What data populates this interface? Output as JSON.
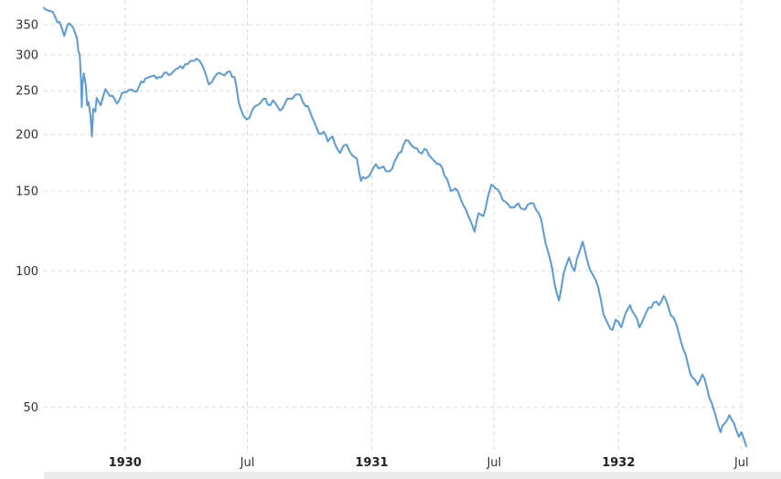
{
  "chart_data": {
    "type": "line",
    "title": "",
    "xlabel": "",
    "ylabel": "",
    "y_scale": "log",
    "ylim": [
      41,
      375
    ],
    "xlim": [
      "1929-09-03",
      "1932-07-08"
    ],
    "grid": true,
    "legend": "none",
    "colors": {
      "line": "#5b9bd5",
      "grid": "#d9d9d9"
    },
    "y_ticks": [
      {
        "value": 50,
        "label": "50"
      },
      {
        "value": 100,
        "label": "100"
      },
      {
        "value": 150,
        "label": "150"
      },
      {
        "value": 200,
        "label": "200"
      },
      {
        "value": 250,
        "label": "250"
      },
      {
        "value": 300,
        "label": "300"
      },
      {
        "value": 350,
        "label": "350"
      }
    ],
    "x_ticks": [
      {
        "date": "1930-01-01",
        "label": "1930",
        "bold": true
      },
      {
        "date": "1930-07-01",
        "label": "Jul",
        "bold": false
      },
      {
        "date": "1931-01-01",
        "label": "1931",
        "bold": true
      },
      {
        "date": "1931-07-01",
        "label": "Jul",
        "bold": false
      },
      {
        "date": "1932-01-01",
        "label": "1932",
        "bold": true
      },
      {
        "date": "1932-07-01",
        "label": "Jul",
        "bold": false
      }
    ],
    "series": [
      {
        "values": [
          [
            "1929-09-03",
            381
          ],
          [
            "1929-09-12",
            375
          ],
          [
            "1929-09-20",
            363
          ],
          [
            "1929-09-26",
            355
          ],
          [
            "1929-10-03",
            330
          ],
          [
            "1929-10-08",
            350
          ],
          [
            "1929-10-11",
            352
          ],
          [
            "1929-10-16",
            345
          ],
          [
            "1929-10-22",
            326
          ],
          [
            "1929-10-24",
            305
          ],
          [
            "1929-10-26",
            300
          ],
          [
            "1929-10-28",
            260
          ],
          [
            "1929-10-29",
            230
          ],
          [
            "1929-10-30",
            258
          ],
          [
            "1929-11-01",
            273
          ],
          [
            "1929-11-04",
            257
          ],
          [
            "1929-11-06",
            232
          ],
          [
            "1929-11-08",
            236
          ],
          [
            "1929-11-11",
            220
          ],
          [
            "1929-11-13",
            198
          ],
          [
            "1929-11-15",
            228
          ],
          [
            "1929-11-18",
            225
          ],
          [
            "1929-11-20",
            241
          ],
          [
            "1929-11-22",
            238
          ],
          [
            "1929-11-26",
            232
          ],
          [
            "1929-12-03",
            252
          ],
          [
            "1929-12-06",
            248
          ],
          [
            "1929-12-10",
            243
          ],
          [
            "1929-12-13",
            244
          ],
          [
            "1929-12-20",
            234
          ],
          [
            "1929-12-24",
            239
          ],
          [
            "1929-12-31",
            248
          ],
          [
            "1930-01-07",
            251
          ],
          [
            "1930-01-15",
            249
          ],
          [
            "1930-01-22",
            256
          ],
          [
            "1930-01-31",
            266
          ],
          [
            "1930-02-10",
            269
          ],
          [
            "1930-02-20",
            268
          ],
          [
            "1930-02-28",
            274
          ],
          [
            "1930-03-10",
            272
          ],
          [
            "1930-03-20",
            280
          ],
          [
            "1930-03-31",
            286
          ],
          [
            "1930-04-08",
            291
          ],
          [
            "1930-04-17",
            294
          ],
          [
            "1930-04-25",
            285
          ],
          [
            "1930-05-01",
            270
          ],
          [
            "1930-05-05",
            258
          ],
          [
            "1930-05-10",
            262
          ],
          [
            "1930-05-20",
            274
          ],
          [
            "1930-05-28",
            270
          ],
          [
            "1930-06-05",
            276
          ],
          [
            "1930-06-12",
            268
          ],
          [
            "1930-06-18",
            236
          ],
          [
            "1930-06-25",
            220
          ],
          [
            "1930-06-30",
            216
          ],
          [
            "1930-07-08",
            226
          ],
          [
            "1930-07-15",
            232
          ],
          [
            "1930-07-25",
            240
          ],
          [
            "1930-07-31",
            233
          ],
          [
            "1930-08-08",
            238
          ],
          [
            "1930-08-18",
            226
          ],
          [
            "1930-08-25",
            233
          ],
          [
            "1930-09-02",
            240
          ],
          [
            "1930-09-10",
            245
          ],
          [
            "1930-09-17",
            245
          ],
          [
            "1930-09-25",
            231
          ],
          [
            "1930-10-01",
            226
          ],
          [
            "1930-10-08",
            213
          ],
          [
            "1930-10-15",
            201
          ],
          [
            "1930-10-22",
            203
          ],
          [
            "1930-10-28",
            193
          ],
          [
            "1930-11-04",
            198
          ],
          [
            "1930-11-10",
            187
          ],
          [
            "1930-11-15",
            182
          ],
          [
            "1930-11-20",
            189
          ],
          [
            "1930-11-25",
            190
          ],
          [
            "1930-12-03",
            180
          ],
          [
            "1930-12-10",
            177
          ],
          [
            "1930-12-16",
            158
          ],
          [
            "1930-12-22",
            160
          ],
          [
            "1930-12-31",
            165
          ],
          [
            "1931-01-07",
            172
          ],
          [
            "1931-01-15",
            169
          ],
          [
            "1931-01-22",
            166
          ],
          [
            "1931-01-31",
            168
          ],
          [
            "1931-02-10",
            182
          ],
          [
            "1931-02-17",
            190
          ],
          [
            "1931-02-24",
            194
          ],
          [
            "1931-03-05",
            187
          ],
          [
            "1931-03-12",
            183
          ],
          [
            "1931-03-20",
            186
          ],
          [
            "1931-03-30",
            178
          ],
          [
            "1931-04-08",
            172
          ],
          [
            "1931-04-15",
            169
          ],
          [
            "1931-04-22",
            160
          ],
          [
            "1931-04-28",
            150
          ],
          [
            "1931-05-05",
            152
          ],
          [
            "1931-05-12",
            145
          ],
          [
            "1931-05-20",
            137
          ],
          [
            "1931-05-28",
            128
          ],
          [
            "1931-06-02",
            122
          ],
          [
            "1931-06-08",
            134
          ],
          [
            "1931-06-15",
            132
          ],
          [
            "1931-06-22",
            146
          ],
          [
            "1931-06-27",
            155
          ],
          [
            "1931-07-03",
            152
          ],
          [
            "1931-07-10",
            148
          ],
          [
            "1931-07-18",
            142
          ],
          [
            "1931-07-25",
            138
          ],
          [
            "1931-08-03",
            140
          ],
          [
            "1931-08-12",
            137
          ],
          [
            "1931-08-20",
            140
          ],
          [
            "1931-08-28",
            141
          ],
          [
            "1931-09-05",
            134
          ],
          [
            "1931-09-12",
            122
          ],
          [
            "1931-09-19",
            110
          ],
          [
            "1931-09-25",
            101
          ],
          [
            "1931-10-01",
            90
          ],
          [
            "1931-10-05",
            86
          ],
          [
            "1931-10-12",
            99
          ],
          [
            "1931-10-20",
            107
          ],
          [
            "1931-10-28",
            100
          ],
          [
            "1931-11-04",
            110
          ],
          [
            "1931-11-09",
            116
          ],
          [
            "1931-11-16",
            105
          ],
          [
            "1931-11-24",
            98
          ],
          [
            "1931-12-02",
            92
          ],
          [
            "1931-12-10",
            80
          ],
          [
            "1931-12-17",
            76
          ],
          [
            "1931-12-23",
            74
          ],
          [
            "1931-12-28",
            78
          ],
          [
            "1932-01-05",
            75
          ],
          [
            "1932-01-12",
            81
          ],
          [
            "1932-01-18",
            84
          ],
          [
            "1932-01-25",
            80
          ],
          [
            "1932-02-01",
            75
          ],
          [
            "1932-02-08",
            79
          ],
          [
            "1932-02-15",
            83
          ],
          [
            "1932-02-22",
            85
          ],
          [
            "1932-03-01",
            84
          ],
          [
            "1932-03-08",
            88
          ],
          [
            "1932-03-15",
            83
          ],
          [
            "1932-03-22",
            79
          ],
          [
            "1932-03-30",
            73
          ],
          [
            "1932-04-06",
            67
          ],
          [
            "1932-04-13",
            62
          ],
          [
            "1932-04-20",
            58
          ],
          [
            "1932-04-27",
            56
          ],
          [
            "1932-05-04",
            59
          ],
          [
            "1932-05-11",
            55
          ],
          [
            "1932-05-18",
            51
          ],
          [
            "1932-05-25",
            47
          ],
          [
            "1932-05-31",
            44
          ],
          [
            "1932-06-06",
            46
          ],
          [
            "1932-06-13",
            48
          ],
          [
            "1932-06-20",
            46
          ],
          [
            "1932-06-27",
            43
          ],
          [
            "1932-07-01",
            44
          ],
          [
            "1932-07-08",
            41
          ]
        ]
      }
    ]
  }
}
